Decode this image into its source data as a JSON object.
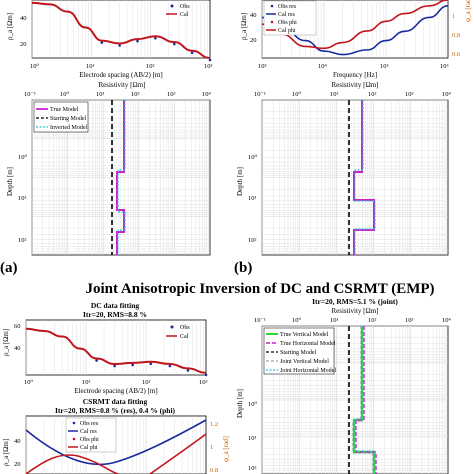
{
  "panel_labels": {
    "a": "(a)",
    "b": "(b)"
  },
  "section_title": "Joint Anisotropic Inversion of DC and CSRMT (EMP)",
  "chart_data": [
    {
      "id": "a-top",
      "type": "line",
      "xlabel": "Electrode spacing (AB/2) [m]",
      "ylabel": "ρ_a [Ωm]",
      "xscale": "log",
      "xlim": [
        1,
        1000
      ],
      "ylim": [
        20,
        60
      ],
      "xticks": [
        "10⁰",
        "10¹",
        "10²",
        "10³"
      ],
      "yticks": [
        "20",
        "40"
      ],
      "legend": [
        "Obs",
        "Cal"
      ],
      "x": [
        1,
        2,
        4,
        8,
        15,
        30,
        60,
        120,
        250,
        500,
        1000
      ],
      "obs": [
        58,
        57,
        52,
        41,
        32,
        30,
        33,
        35,
        31,
        25,
        20
      ],
      "cal": [
        58,
        57,
        52,
        41,
        32,
        30,
        33,
        35,
        31,
        25,
        20
      ]
    },
    {
      "id": "b-top",
      "type": "line",
      "xlabel": "Frequency [Hz]",
      "ylabel": "ρ_a [Ωm]",
      "y2label": "φ_a [rad]",
      "xscale": "log",
      "xlim": [
        1000,
        1000000
      ],
      "ylim": [
        10,
        60
      ],
      "y2lim": [
        0.6,
        1.2
      ],
      "xticks": [
        "10³",
        "10⁴",
        "10⁵",
        "10⁶"
      ],
      "yticks": [
        "20",
        "40"
      ],
      "y2ticks": [
        "0.6",
        "0.8",
        "1"
      ],
      "legend": [
        "Obs res",
        "Cal res",
        "Obs phi",
        "Cal phi"
      ],
      "x": [
        1000,
        2000,
        5000,
        10000,
        20000,
        50000,
        100000,
        200000,
        500000,
        1000000
      ],
      "res": [
        45,
        38,
        25,
        16,
        13,
        17,
        25,
        33,
        45,
        55
      ],
      "phi": [
        0.95,
        0.85,
        0.72,
        0.7,
        0.76,
        0.88,
        0.98,
        1.06,
        1.14,
        1.2
      ]
    },
    {
      "id": "a-model",
      "type": "line",
      "xlabel": "Resistivity [Ωm]",
      "ylabel": "Depth [m]",
      "xscale": "log",
      "yscale": "log",
      "xlim": [
        0.1,
        10000
      ],
      "ylim": [
        0.1,
        1000
      ],
      "xticks": [
        "10⁻¹",
        "10⁰",
        "10¹",
        "10²",
        "10³",
        "10⁴"
      ],
      "yticks": [
        "10⁰",
        "10¹",
        "10²"
      ],
      "legend": [
        "True Model",
        "Starting Model",
        "Inverted Model"
      ],
      "true_model": {
        "res": [
          30,
          10,
          30,
          10
        ],
        "depth_tops": [
          0.1,
          20,
          120,
          420
        ]
      },
      "starting_model": 20
    },
    {
      "id": "b-model",
      "type": "line",
      "xlabel": "Resistivity [Ωm]",
      "ylabel": "Depth [m]",
      "xscale": "log",
      "yscale": "log",
      "xlim": [
        0.1,
        10000
      ],
      "ylim": [
        0.1,
        1000
      ],
      "xticks": [
        "10⁻¹",
        "10⁰",
        "10¹",
        "10²",
        "10³",
        "10⁴"
      ],
      "yticks": [
        "10⁰",
        "10¹",
        "10²"
      ],
      "true_model": {
        "res": [
          30,
          10,
          30,
          10
        ],
        "depth_tops": [
          0.1,
          20,
          120,
          420
        ]
      },
      "starting_model": 20
    },
    {
      "id": "c-dc",
      "type": "line",
      "title": "Itr=20, RMS=8.8 %",
      "subtitle": "DC data fitting",
      "xlabel": "Electrode spacing (AB/2) [m]",
      "ylabel": "ρ_a [Ωm]",
      "xscale": "log",
      "xlim": [
        1,
        1000
      ],
      "ylim": [
        20,
        70
      ],
      "xticks": [
        "10⁰",
        "10¹",
        "10²",
        "10³"
      ],
      "yticks": [
        "40",
        "60"
      ],
      "legend": [
        "Obs",
        "Cal"
      ],
      "x": [
        1,
        2,
        4,
        8,
        15,
        30,
        60,
        120,
        250,
        500,
        1000
      ],
      "obs": [
        62,
        60,
        55,
        44,
        35,
        30,
        31,
        32,
        30,
        26,
        22
      ],
      "cal": [
        62,
        60,
        55,
        44,
        35,
        30,
        31,
        32,
        30,
        26,
        22
      ]
    },
    {
      "id": "c-csrmt",
      "type": "line",
      "subtitle": "CSRMT data fitting",
      "title": "Itr=20, RMS=0.8 % (res), 0.4 % (phi)",
      "ylabel": "ρ_a [Ωm]",
      "y2label": "φ_a [rad]",
      "xscale": "log",
      "ylim": [
        10,
        60
      ],
      "y2lim": [
        0.6,
        1.2
      ],
      "yticks": [
        "20",
        "40"
      ],
      "y2ticks": [
        "0.8",
        "1",
        "1.2"
      ],
      "legend": [
        "Obs res",
        "Cal res",
        "Obs phi",
        "Cal phi"
      ]
    },
    {
      "id": "c-model",
      "type": "line",
      "title": "Itr=20, RMS=5.1 % (joint)",
      "xlabel": "Resistivity [Ωm]",
      "ylabel": "Depth [m]",
      "xscale": "log",
      "yscale": "log",
      "xlim": [
        0.1,
        10000
      ],
      "ylim": [
        0.1,
        1000
      ],
      "xticks": [
        "10⁻¹",
        "10⁰",
        "10¹",
        "10²",
        "10³",
        "10⁴"
      ],
      "yticks": [
        "10⁰",
        "10¹",
        "10²"
      ],
      "legend": [
        "True Vertical Model",
        "True Horizontal Model",
        "Starting Model",
        "Joint Vertical Model",
        "Joint Horizontal Model"
      ]
    }
  ],
  "colors": {
    "red": "#c0161c",
    "blue": "#1a2a9c",
    "magenta": "#cc22cc",
    "cyan": "#22c8d8",
    "green": "#2fd82f",
    "orange": "#c86400"
  }
}
